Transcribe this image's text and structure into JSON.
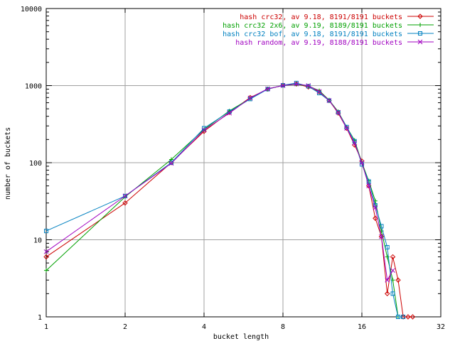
{
  "chart_data": {
    "type": "line",
    "title": "",
    "xlabel": "bucket length",
    "ylabel": "number of buckets",
    "x_scale": "log2",
    "y_scale": "log10",
    "xlim": [
      1,
      32
    ],
    "ylim": [
      1,
      10000
    ],
    "grid": true,
    "legend_position": "top-right",
    "x_ticks": [
      {
        "value": 1,
        "label": "1"
      },
      {
        "value": 2,
        "label": "2"
      },
      {
        "value": 4,
        "label": "4"
      },
      {
        "value": 8,
        "label": "8"
      },
      {
        "value": 16,
        "label": "16"
      },
      {
        "value": 32,
        "label": "32"
      }
    ],
    "y_ticks": [
      {
        "value": 1,
        "label": "1"
      },
      {
        "value": 10,
        "label": "10"
      },
      {
        "value": 100,
        "label": "100"
      },
      {
        "value": 1000,
        "label": "1000"
      },
      {
        "value": 10000,
        "label": "10000"
      }
    ],
    "series": [
      {
        "name": "hash crc32, av 9.18, 8191/8191 buckets",
        "color": "#cc0000",
        "marker": "diamond",
        "x": [
          1,
          2,
          3,
          4,
          5,
          6,
          7,
          8,
          9,
          10,
          11,
          12,
          13,
          14,
          15,
          16,
          17,
          18,
          19,
          20,
          21,
          22,
          23,
          24,
          25
        ],
        "y": [
          6,
          30,
          100,
          255,
          450,
          700,
          900,
          1010,
          1050,
          960,
          830,
          640,
          440,
          280,
          170,
          105,
          50,
          19,
          11,
          2,
          6,
          3,
          1,
          1,
          1
        ]
      },
      {
        "name": "hash crc32 2x6, av 9.19, 8189/8191 buckets",
        "color": "#00a000",
        "marker": "plus",
        "x": [
          1,
          2,
          3,
          4,
          5,
          6,
          7,
          8,
          9,
          10,
          11,
          12,
          13,
          14,
          15,
          16,
          17,
          18,
          19,
          20,
          21,
          22
        ],
        "y": [
          4,
          36,
          110,
          270,
          470,
          680,
          910,
          1000,
          1040,
          990,
          860,
          650,
          460,
          290,
          195,
          100,
          58,
          32,
          13,
          6,
          3,
          1
        ]
      },
      {
        "name": "hash crc32 bof, av 9.18, 8191/8191 buckets",
        "color": "#0080c0",
        "marker": "square",
        "x": [
          1,
          2,
          3,
          4,
          5,
          6,
          7,
          8,
          9,
          10,
          11,
          12,
          13,
          14,
          15,
          16,
          17,
          18,
          19,
          20,
          21,
          22,
          23
        ],
        "y": [
          13,
          37,
          100,
          280,
          460,
          670,
          900,
          1010,
          1080,
          980,
          800,
          640,
          450,
          290,
          190,
          95,
          57,
          28,
          15,
          8,
          2,
          1,
          1
        ]
      },
      {
        "name": "hash random, av 9.19, 8188/8191 buckets",
        "color": "#a000c0",
        "marker": "cross",
        "x": [
          1,
          2,
          3,
          4,
          5,
          6,
          7,
          8,
          9,
          10,
          11,
          12,
          13,
          14,
          15,
          16,
          17,
          18,
          19,
          20,
          21
        ],
        "y": [
          7,
          37,
          98,
          265,
          440,
          690,
          910,
          1000,
          1050,
          1000,
          840,
          640,
          450,
          280,
          180,
          100,
          50,
          26,
          11,
          3,
          4
        ]
      }
    ]
  }
}
